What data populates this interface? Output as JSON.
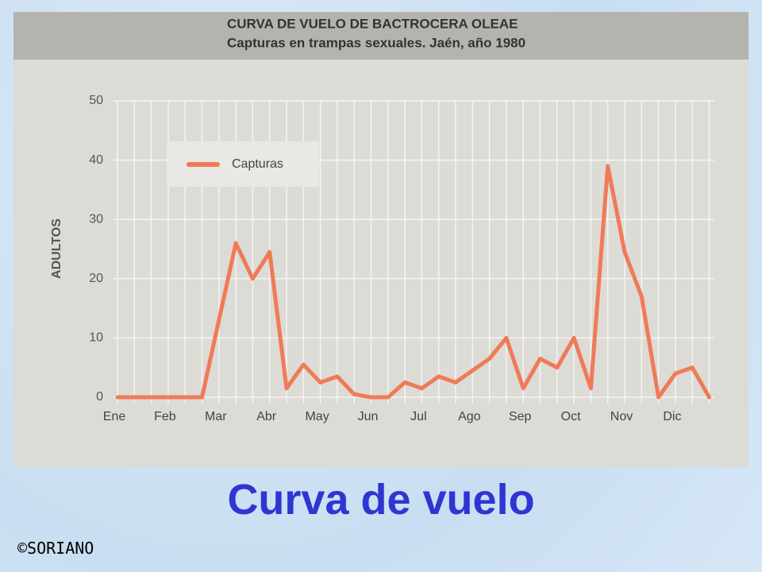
{
  "chart_data": {
    "type": "line",
    "title": "CURVA DE VUELO DE BACTROCERA OLEAE",
    "subtitle": "Capturas en trampas sexuales. Jaén, año 1980",
    "y_label": "ADULTOS",
    "categories": [
      "Ene",
      null,
      null,
      "Feb",
      null,
      null,
      "Mar",
      null,
      null,
      "Abr",
      null,
      null,
      "May",
      null,
      null,
      "Jun",
      null,
      null,
      "Jul",
      null,
      null,
      "Ago",
      null,
      null,
      "Sep",
      null,
      null,
      "Oct",
      null,
      null,
      "Nov",
      null,
      null,
      "Dic",
      null,
      null
    ],
    "series": [
      {
        "name": "Capturas",
        "color": "#f07a58",
        "values": [
          0,
          0,
          0,
          0,
          0,
          0,
          13,
          26,
          20,
          24.5,
          1.5,
          5.5,
          2.5,
          3.5,
          0.5,
          0,
          0,
          2.5,
          1.5,
          3.5,
          2.5,
          4.5,
          6.5,
          10,
          1.5,
          6.5,
          5,
          10,
          1.5,
          39,
          24.5,
          17,
          0,
          4,
          5,
          0
        ]
      }
    ],
    "ylim": [
      0,
      50
    ],
    "yticks": [
      0,
      10,
      20,
      30,
      40,
      50
    ],
    "grid": true
  },
  "slide": {
    "heading": "Curva de vuelo",
    "credit": "©SORIANO"
  }
}
